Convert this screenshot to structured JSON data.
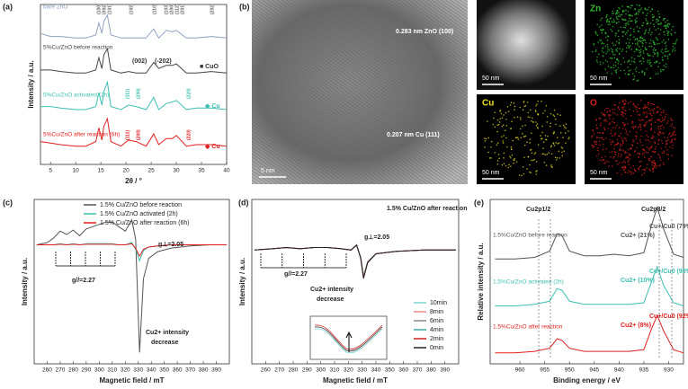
{
  "chart_data": [
    {
      "type": "line",
      "panel": "(a)",
      "xlabel": "2θ / °",
      "ylabel": "Intensity / a.u.",
      "xlim": [
        3,
        40
      ],
      "xticks": [
        5,
        10,
        15,
        20,
        25,
        30,
        35,
        40
      ],
      "ylim": [
        0,
        10.5
      ],
      "legend": "inline",
      "x": [
        3,
        5,
        7,
        10,
        12,
        14,
        14.6,
        15.2,
        15.6,
        16.3,
        17,
        19,
        20.5,
        22,
        24,
        25.5,
        26.5,
        28,
        29.2,
        30,
        32,
        34,
        37,
        40
      ],
      "series": [
        {
          "name": "bare ZnO",
          "color": "#8fa3c0",
          "values": [
            8.6,
            8.4,
            8.4,
            8.3,
            8.3,
            8.5,
            9.3,
            8.6,
            9.4,
            9.8,
            8.5,
            8.3,
            8.3,
            8.3,
            8.3,
            8.9,
            8.3,
            8.8,
            8.7,
            8.8,
            8.3,
            8.3,
            8.4,
            8.3
          ]
        },
        {
          "name": "5%Cu/ZnO before reaction",
          "color": "#444444",
          "values": [
            6.2,
            6.2,
            6.1,
            6.0,
            6.0,
            6.2,
            7.0,
            6.3,
            7.2,
            7.6,
            6.2,
            6.0,
            6.1,
            6.0,
            6.0,
            6.7,
            6.3,
            6.5,
            6.5,
            6.6,
            6.0,
            6.0,
            6.1,
            6.0
          ]
        },
        {
          "name": "5%Cu/ZnO activated (2h)",
          "color": "#3cbfb0",
          "values": [
            3.8,
            3.8,
            3.7,
            3.6,
            3.6,
            3.8,
            4.7,
            3.9,
            4.8,
            5.4,
            3.8,
            3.6,
            3.9,
            3.8,
            3.6,
            4.4,
            3.6,
            4.0,
            4.1,
            4.2,
            3.6,
            3.7,
            3.7,
            3.6
          ]
        },
        {
          "name": "5%Cu/ZnO after reaction (6h)",
          "color": "#e02020",
          "values": [
            1.5,
            1.4,
            1.3,
            1.2,
            1.2,
            1.5,
            2.4,
            1.6,
            2.5,
            3.0,
            1.5,
            1.2,
            1.6,
            1.5,
            1.2,
            2.0,
            1.3,
            1.7,
            1.7,
            1.9,
            1.2,
            1.3,
            1.3,
            1.2
          ]
        }
      ],
      "annotations": [
        "(100)",
        "(002)",
        "(101)",
        "(102)",
        "(110)",
        "(103)",
        "(200)",
        "(112)",
        "(201)",
        "(202)",
        "■ CuO",
        "(002)",
        "(-202)",
        "◆ Cu",
        "(111)",
        "(200)",
        "(220)",
        "◆ Cu",
        "(111)",
        "(200)",
        "(220)"
      ]
    },
    {
      "type": "line",
      "panel": "(c)",
      "xlabel": "Magnetic field / mT",
      "ylabel": "Intensity / a.u.",
      "xlim": [
        250,
        400
      ],
      "xticks": [
        260,
        270,
        280,
        290,
        300,
        310,
        320,
        330,
        340,
        350,
        360,
        370,
        380,
        390
      ],
      "ylim": [
        -10.5,
        4
      ],
      "legend": "upper right",
      "x": [
        252,
        260,
        265,
        270,
        275,
        280,
        285,
        290,
        295,
        300,
        305,
        310,
        315,
        320,
        325,
        328,
        331,
        334,
        338,
        345,
        355,
        370,
        385,
        398
      ],
      "series": [
        {
          "name": "1.5% Cu/ZnO before reaction",
          "color": "#555555",
          "values": [
            0,
            0.2,
            0.6,
            1.2,
            0.9,
            1.3,
            0.8,
            1.4,
            1.6,
            1.8,
            2.0,
            2.0,
            1.6,
            1.2,
            2.2,
            0.5,
            -9.5,
            -3,
            -1.2,
            -0.6,
            -0.3,
            -0.1,
            0,
            0
          ]
        },
        {
          "name": "1.5% Cu/ZnO activated (2h)",
          "color": "#3cbfb0",
          "values": [
            0,
            0,
            0,
            0.1,
            0,
            0.1,
            0,
            0.1,
            0.1,
            0.1,
            0.1,
            0.1,
            0,
            0,
            0.2,
            -0.4,
            -1.4,
            -0.5,
            -0.2,
            -0.1,
            0,
            0,
            0,
            0
          ]
        },
        {
          "name": "1.5% Cu/ZnO after reaction (6h)",
          "color": "#e02020",
          "values": [
            0,
            0,
            0,
            0.05,
            0,
            0.05,
            0,
            0.05,
            0.05,
            0.05,
            0.05,
            0.05,
            0,
            0,
            0.1,
            -0.3,
            -1.0,
            -0.4,
            -0.2,
            -0.1,
            0,
            0,
            0,
            0
          ]
        }
      ],
      "annotations": [
        "g⊥=2.05",
        "g//=2.27",
        "Cu2+ intensity",
        "decrease"
      ]
    },
    {
      "type": "line",
      "panel": "(d)",
      "title": "1.5% Cu/ZnO after reaction",
      "xlabel": "Magnetic field / mT",
      "ylabel": "Intensity / a.u.",
      "xlim": [
        250,
        400
      ],
      "xticks": [
        260,
        270,
        280,
        290,
        300,
        310,
        320,
        330,
        340,
        350,
        360,
        370,
        380,
        390
      ],
      "ylim": [
        -9,
        4
      ],
      "legend": "lower right",
      "x": [
        252,
        265,
        275,
        285,
        295,
        305,
        315,
        322,
        326,
        329,
        331,
        334,
        340,
        355,
        375,
        398
      ],
      "series": [
        {
          "name": "10min",
          "color": "#7fd4cf",
          "values": [
            0,
            0.1,
            0.2,
            0.1,
            0.2,
            0.2,
            0.1,
            0.0,
            0.4,
            -0.6,
            -2.0,
            -0.9,
            -0.3,
            -0.1,
            0,
            0
          ]
        },
        {
          "name": "8min",
          "color": "#e88a8a",
          "values": [
            0,
            0.1,
            0.2,
            0.1,
            0.2,
            0.2,
            0.1,
            0.0,
            0.4,
            -0.6,
            -2.05,
            -0.9,
            -0.3,
            -0.1,
            0,
            0
          ]
        },
        {
          "name": "6min",
          "color": "#888888",
          "values": [
            0,
            0.1,
            0.2,
            0.1,
            0.2,
            0.2,
            0.1,
            0.0,
            0.4,
            -0.6,
            -2.1,
            -0.95,
            -0.3,
            -0.1,
            0,
            0
          ]
        },
        {
          "name": "4min",
          "color": "#3aa8a0",
          "values": [
            0,
            0.1,
            0.2,
            0.1,
            0.2,
            0.2,
            0.1,
            0.0,
            0.4,
            -0.6,
            -2.15,
            -0.95,
            -0.3,
            -0.1,
            0,
            0
          ]
        },
        {
          "name": "2min",
          "color": "#d42020",
          "values": [
            0,
            0.1,
            0.2,
            0.1,
            0.2,
            0.2,
            0.1,
            0.0,
            0.4,
            -0.65,
            -2.2,
            -1.0,
            -0.3,
            -0.1,
            0,
            0
          ]
        },
        {
          "name": "0min",
          "color": "#222222",
          "values": [
            0,
            0.1,
            0.2,
            0.1,
            0.2,
            0.2,
            0.1,
            0.0,
            0.4,
            -0.65,
            -2.25,
            -1.0,
            -0.3,
            -0.1,
            0,
            0
          ]
        }
      ],
      "annotations": [
        "g⊥=2.05",
        "g//=2.27",
        "Cu2+ intensity",
        "decrease"
      ]
    },
    {
      "type": "line",
      "panel": "(e)",
      "xlabel": "Binding energy / eV",
      "ylabel": "Relative intensity / a.u.",
      "xlim": [
        966,
        927
      ],
      "xticks": [
        960,
        955,
        950,
        945,
        940,
        935,
        930
      ],
      "ylim": [
        0,
        10.5
      ],
      "legend": "inline",
      "x": [
        965,
        961,
        957,
        954,
        952.5,
        951.5,
        950,
        947,
        944,
        941,
        938,
        935,
        933.5,
        932.3,
        931,
        929,
        927
      ],
      "series": [
        {
          "name": "1.5%Cu/ZnO before reaction",
          "color": "#555555",
          "values": [
            6.7,
            6.7,
            6.8,
            7.2,
            8.3,
            8.2,
            7.2,
            6.9,
            6.9,
            7.0,
            6.9,
            7.1,
            8.8,
            10.0,
            8.6,
            7.0,
            6.8
          ]
        },
        {
          "name": "1.5%Cu/ZnO activated (2h)",
          "color": "#3cbfb0",
          "values": [
            3.7,
            3.7,
            3.8,
            4.0,
            4.8,
            4.7,
            4.0,
            3.8,
            3.8,
            3.8,
            3.8,
            3.9,
            5.2,
            6.2,
            5.0,
            3.9,
            3.7
          ]
        },
        {
          "name": "1.5%Cu/ZnO after reaction",
          "color": "#e02020",
          "values": [
            0.7,
            0.7,
            0.8,
            1.0,
            1.6,
            1.5,
            1.0,
            0.8,
            0.8,
            0.8,
            0.8,
            0.9,
            2.2,
            3.1,
            2.1,
            0.9,
            0.7
          ]
        }
      ],
      "annotations": [
        "Cu2p1/2",
        "Cu2p3/2",
        "Cu2+ (21%)",
        "Cu+/Cu0 (79%)",
        "Cu2+ (10%)",
        "Cu+/Cu0 (90%)",
        "Cu2+ (8%)",
        "Cu+/Cu0 (92%)"
      ]
    }
  ],
  "panel_b": {
    "panel": "(b)",
    "tem_labels": [
      "0.283 nm ZnO (100)",
      "0.207 nm Cu (111)"
    ],
    "tem_scale": "5 nm",
    "maps": [
      {
        "scale": "50 nm"
      },
      {
        "label": "Zn",
        "scale": "50 nm"
      },
      {
        "label": "Cu",
        "scale": "50 nm"
      },
      {
        "label": "O",
        "scale": "50 nm"
      }
    ]
  }
}
